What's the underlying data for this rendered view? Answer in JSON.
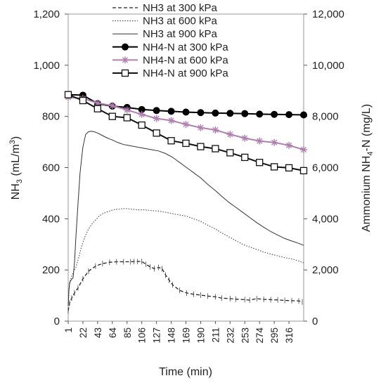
{
  "chart_data": {
    "type": "line",
    "title": "",
    "xlabel": "Time (min)",
    "ylabel_left": {
      "main": "NH",
      "sub": "3",
      "rest": " (mL/m",
      "sup": "3",
      "end": ")"
    },
    "ylabel_right": {
      "main": "Ammonium NH",
      "sub": "4",
      "rest": "-N (mg/L)"
    },
    "x_ticks": [
      "1",
      "22",
      "43",
      "64",
      "85",
      "106",
      "127",
      "148",
      "169",
      "190",
      "211",
      "232",
      "253",
      "274",
      "295",
      "316"
    ],
    "xlim": [
      1,
      337
    ],
    "ylim_left": [
      0,
      1200
    ],
    "yticks_left": [
      "0",
      "200",
      "400",
      "600",
      "800",
      "1,000",
      "1,200"
    ],
    "ylim_right": [
      0,
      12000
    ],
    "yticks_right": [
      "0",
      "2,000",
      "4,000",
      "6,000",
      "8,000",
      "10,000",
      "12,000"
    ],
    "legend_position": "top-center",
    "series": [
      {
        "name": "NH3 at 300 kPa",
        "axis": "left",
        "style": "dashed",
        "color": "#222222",
        "x": [
          1,
          3,
          6,
          10,
          15,
          22,
          30,
          40,
          50,
          60,
          70,
          80,
          90,
          95,
          100,
          106,
          112,
          118,
          124,
          130,
          135,
          140,
          145,
          150,
          160,
          170,
          180,
          190,
          200,
          211,
          220,
          232,
          240,
          253,
          260,
          270,
          280,
          290,
          300,
          310,
          320,
          330,
          335
        ],
        "y": [
          40,
          70,
          90,
          110,
          130,
          165,
          195,
          215,
          225,
          230,
          232,
          232,
          232,
          233,
          233,
          233,
          222,
          212,
          205,
          210,
          205,
          180,
          160,
          142,
          120,
          110,
          105,
          102,
          98,
          95,
          90,
          88,
          86,
          84,
          82,
          88,
          85,
          84,
          83,
          81,
          80,
          79,
          75
        ]
      },
      {
        "name": "NH3 at 600 kPa",
        "axis": "left",
        "style": "dotted",
        "color": "#555555",
        "x": [
          1,
          2,
          4,
          8,
          12,
          16,
          20,
          25,
          30,
          35,
          40,
          45,
          50,
          55,
          60,
          65,
          70,
          75,
          80,
          85,
          90,
          100,
          110,
          120,
          130,
          140,
          150,
          160,
          170,
          180,
          190,
          200,
          211,
          220,
          230,
          240,
          250,
          260,
          270,
          280,
          290,
          300,
          310,
          320,
          330,
          337
        ],
        "y": [
          50,
          120,
          160,
          190,
          210,
          250,
          290,
          330,
          360,
          380,
          395,
          410,
          420,
          425,
          430,
          435,
          437,
          438,
          440,
          440,
          438,
          435,
          435,
          432,
          430,
          425,
          420,
          415,
          410,
          400,
          390,
          375,
          360,
          345,
          330,
          315,
          300,
          290,
          280,
          270,
          262,
          255,
          248,
          243,
          235,
          228
        ]
      },
      {
        "name": "NH3 at 900 kPa",
        "axis": "left",
        "style": "solid-thin",
        "color": "#333333",
        "x": [
          1,
          2,
          3,
          5,
          8,
          10,
          12,
          15,
          18,
          22,
          26,
          30,
          34,
          38,
          43,
          50,
          55,
          60,
          64,
          70,
          75,
          80,
          85,
          90,
          100,
          110,
          120,
          130,
          140,
          150,
          160,
          170,
          180,
          190,
          200,
          211,
          220,
          230,
          240,
          250,
          260,
          270,
          280,
          290,
          300,
          310,
          320,
          330,
          337
        ],
        "y": [
          60,
          120,
          150,
          160,
          170,
          230,
          330,
          460,
          580,
          680,
          730,
          740,
          742,
          740,
          735,
          725,
          718,
          712,
          708,
          700,
          695,
          690,
          688,
          685,
          680,
          675,
          670,
          665,
          655,
          640,
          620,
          600,
          580,
          560,
          535,
          510,
          488,
          465,
          445,
          425,
          405,
          385,
          367,
          350,
          336,
          323,
          313,
          304,
          296
        ]
      },
      {
        "name": "NH4-N at 300 kPa",
        "axis": "right",
        "style": "solid-filled-circle",
        "color": "#000000",
        "x": [
          1,
          22,
          43,
          64,
          85,
          106,
          127,
          148,
          169,
          190,
          211,
          232,
          253,
          274,
          295,
          316,
          337
        ],
        "y": [
          8850,
          8830,
          8500,
          8400,
          8350,
          8270,
          8230,
          8200,
          8170,
          8150,
          8130,
          8120,
          8110,
          8090,
          8080,
          8070,
          8060
        ]
      },
      {
        "name": "NH4-N at 600 kPa",
        "axis": "right",
        "style": "solid-star",
        "color": "#b07fb0",
        "x": [
          1,
          22,
          43,
          64,
          85,
          106,
          127,
          148,
          169,
          190,
          211,
          232,
          253,
          274,
          295,
          316,
          337
        ],
        "y": [
          8750,
          8700,
          8520,
          8420,
          8250,
          8080,
          7920,
          7840,
          7690,
          7560,
          7470,
          7300,
          7150,
          7040,
          6980,
          6870,
          6700
        ]
      },
      {
        "name": "NH4-N at 900 kPa",
        "axis": "right",
        "style": "solid-open-square",
        "color": "#111111",
        "x": [
          1,
          22,
          43,
          64,
          85,
          106,
          127,
          148,
          169,
          190,
          211,
          232,
          253,
          274,
          295,
          316,
          337
        ],
        "y": [
          8850,
          8620,
          8300,
          8000,
          7950,
          7660,
          7350,
          7050,
          6950,
          6820,
          6740,
          6580,
          6400,
          6200,
          6030,
          5990,
          5880
        ]
      }
    ]
  }
}
